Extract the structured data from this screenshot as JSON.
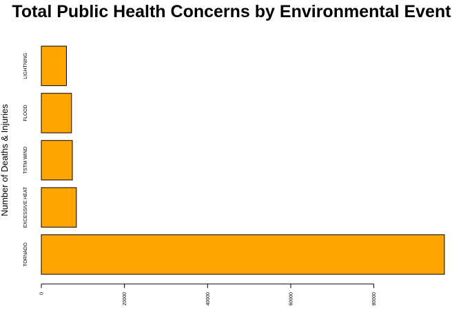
{
  "chart_data": {
    "type": "bar",
    "orientation": "horizontal",
    "title": "Total Public Health Concerns by Environmental Event",
    "ylabel": "Number of Deaths & Injuries",
    "xlabel": "",
    "categories": [
      "TORNADO",
      "EXCESSIVE HEAT",
      "TSTM WIND",
      "FLOOD",
      "LIGHTNING"
    ],
    "values": [
      96979,
      8428,
      7461,
      7259,
      6046
    ],
    "xlim": [
      0,
      96979
    ],
    "xticks": [
      0,
      20000,
      40000,
      60000,
      80000
    ],
    "bar_color": "#FFA500",
    "bar_border": "#000000",
    "grid": false,
    "legend": "none"
  }
}
